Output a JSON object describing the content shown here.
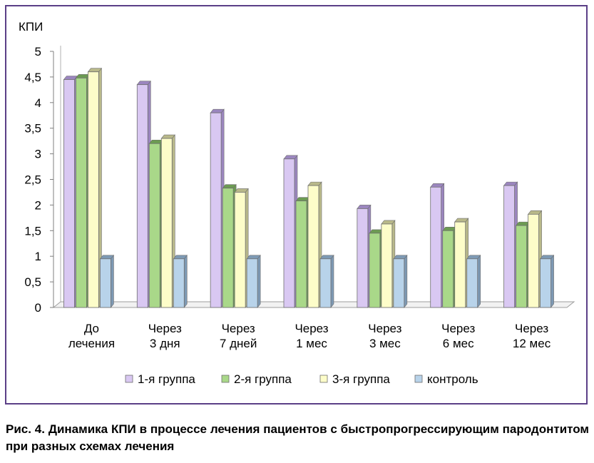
{
  "chart_data": {
    "type": "bar",
    "ylabel": "КПИ",
    "ylim": [
      0,
      5
    ],
    "yticks": [
      "0",
      "0,5",
      "1",
      "1,5",
      "2",
      "2,5",
      "3",
      "3,5",
      "4",
      "4,5",
      "5"
    ],
    "categories": [
      [
        "До",
        "лечения"
      ],
      [
        "Через",
        "3 дня"
      ],
      [
        "Через",
        "7 дней"
      ],
      [
        "Через",
        "1 мес"
      ],
      [
        "Через",
        "3 мес"
      ],
      [
        "Через",
        "6 мес"
      ],
      [
        "Через",
        "12 мес"
      ]
    ],
    "series": [
      {
        "name": "1-я группа",
        "color": "#d9c8f2",
        "side": "#9b86bf",
        "values": [
          4.45,
          4.35,
          3.8,
          2.9,
          1.93,
          2.35,
          2.38
        ]
      },
      {
        "name": "2-я группа",
        "color": "#a9d889",
        "side": "#6c9b52",
        "values": [
          4.48,
          3.2,
          2.33,
          2.08,
          1.45,
          1.5,
          1.6
        ]
      },
      {
        "name": "3-я группа",
        "color": "#fdfdc9",
        "side": "#b9b98a",
        "values": [
          4.6,
          3.3,
          2.25,
          2.38,
          1.63,
          1.67,
          1.82
        ]
      },
      {
        "name": "контроль",
        "color": "#b8d3ea",
        "side": "#7d99b4",
        "values": [
          0.95,
          0.95,
          0.95,
          0.95,
          0.95,
          0.95,
          0.95
        ]
      }
    ],
    "grid": false,
    "legend": "bottom"
  },
  "caption": "Рис. 4. Динамика КПИ в процессе лечения пациентов с быстропрогрессирующим пародонтитом при разных схемах лечения"
}
